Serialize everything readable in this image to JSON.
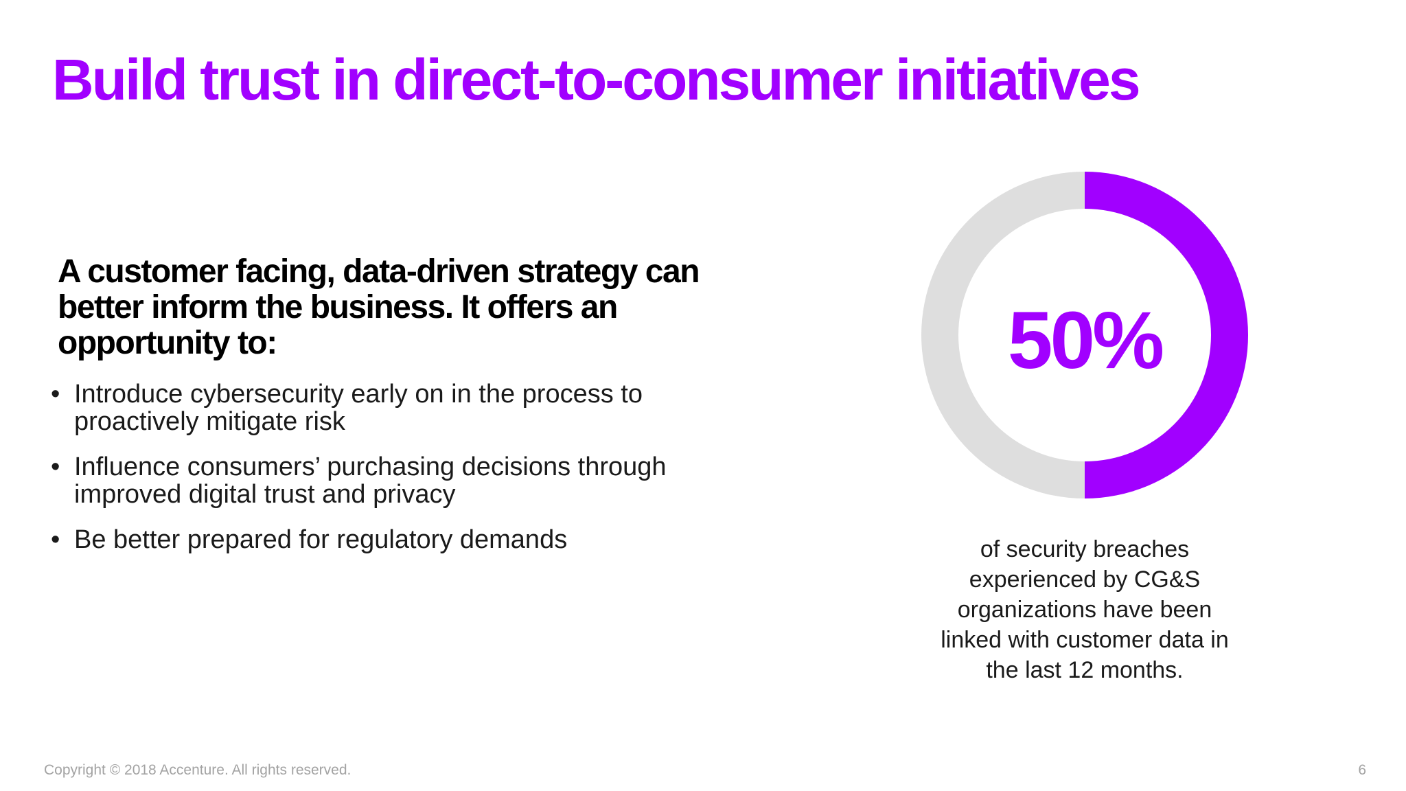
{
  "colors": {
    "accent": "#A100FF",
    "track": "#DEDEDE",
    "text": "#111111",
    "footer": "#A3A3A3"
  },
  "slide": {
    "title": "Build trust in direct-to-consumer initiatives",
    "lead": "A customer facing, data-driven strategy can better inform the business. It offers an opportunity to:",
    "bullet_marker": "•",
    "bullets": [
      "Introduce cybersecurity early on in the process to proactively mitigate risk",
      "Influence consumers’ purchasing decisions through improved digital trust and privacy",
      "Be better prepared for regulatory demands"
    ]
  },
  "stat": {
    "value_label": "50%",
    "caption": "of security breaches experienced by CG&S organizations have been linked with customer data in the last 12 months."
  },
  "chart_data": {
    "type": "pie",
    "style": "donut",
    "values": [
      50,
      50
    ],
    "colors": [
      "#A100FF",
      "#DEDEDE"
    ],
    "start_angle_deg": 0,
    "direction": "clockwise",
    "title": "",
    "legend": "none"
  },
  "footer": {
    "copyright": "Copyright © 2018 Accenture. All rights reserved.",
    "page_number": "6"
  }
}
